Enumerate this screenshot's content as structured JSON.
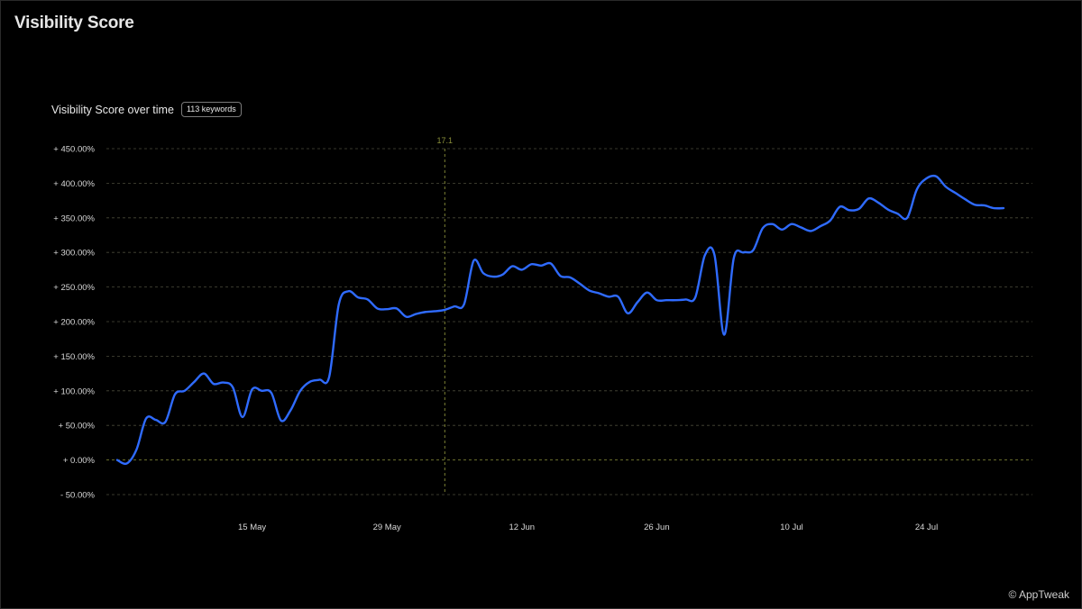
{
  "page": {
    "title": "Visibility Score"
  },
  "chart_header": {
    "title": "Visibility Score over time",
    "badge": "113 keywords"
  },
  "footer": {
    "brand": "© AppTweak"
  },
  "colors": {
    "background": "#000000",
    "line": "#2f6bff",
    "grid": "#4a4a3a",
    "marker": "#8a8f3a",
    "tick_text": "#d8d8d8"
  },
  "chart_data": {
    "type": "line",
    "title": "Visibility Score over time",
    "xlabel": "",
    "ylabel": "",
    "x_range": [
      "2024-05-01",
      "2024-08-01"
    ],
    "ylim": [
      -50,
      450
    ],
    "yticks": [
      {
        "value": 450,
        "label": "+ 450.00%"
      },
      {
        "value": 400,
        "label": "+ 400.00%"
      },
      {
        "value": 350,
        "label": "+ 350.00%"
      },
      {
        "value": 300,
        "label": "+ 300.00%"
      },
      {
        "value": 250,
        "label": "+ 250.00%"
      },
      {
        "value": 200,
        "label": "+ 200.00%"
      },
      {
        "value": 150,
        "label": "+ 150.00%"
      },
      {
        "value": 100,
        "label": "+ 100.00%"
      },
      {
        "value": 50,
        "label": "+ 50.00%"
      },
      {
        "value": 0,
        "label": "+ 0.00%"
      },
      {
        "value": -50,
        "label": "- 50.00%"
      }
    ],
    "xticks": [
      {
        "date": "2024-05-15",
        "label": "15 May"
      },
      {
        "date": "2024-05-29",
        "label": "29 May"
      },
      {
        "date": "2024-06-12",
        "label": "12 Jun"
      },
      {
        "date": "2024-06-26",
        "label": "26 Jun"
      },
      {
        "date": "2024-07-10",
        "label": "10 Jul"
      },
      {
        "date": "2024-07-24",
        "label": "24 Jul"
      }
    ],
    "grid": true,
    "annotations": [
      {
        "date": "2024-06-04",
        "label": "17.1"
      }
    ],
    "series": [
      {
        "points": [
          [
            "2024-05-01",
            0
          ],
          [
            "2024-05-02",
            -5
          ],
          [
            "2024-05-03",
            15
          ],
          [
            "2024-05-04",
            60
          ],
          [
            "2024-05-05",
            58
          ],
          [
            "2024-05-06",
            55
          ],
          [
            "2024-05-07",
            95
          ],
          [
            "2024-05-08",
            100
          ],
          [
            "2024-05-09",
            113
          ],
          [
            "2024-05-10",
            125
          ],
          [
            "2024-05-11",
            110
          ],
          [
            "2024-05-12",
            112
          ],
          [
            "2024-05-13",
            105
          ],
          [
            "2024-05-14",
            62
          ],
          [
            "2024-05-15",
            102
          ],
          [
            "2024-05-16",
            100
          ],
          [
            "2024-05-17",
            97
          ],
          [
            "2024-05-18",
            57
          ],
          [
            "2024-05-19",
            72
          ],
          [
            "2024-05-20",
            100
          ],
          [
            "2024-05-21",
            113
          ],
          [
            "2024-05-22",
            116
          ],
          [
            "2024-05-23",
            120
          ],
          [
            "2024-05-24",
            225
          ],
          [
            "2024-05-25",
            244
          ],
          [
            "2024-05-26",
            235
          ],
          [
            "2024-05-27",
            232
          ],
          [
            "2024-05-28",
            219
          ],
          [
            "2024-05-29",
            218
          ],
          [
            "2024-05-30",
            219
          ],
          [
            "2024-05-31",
            207
          ],
          [
            "2024-06-01",
            211
          ],
          [
            "2024-06-02",
            214
          ],
          [
            "2024-06-03",
            215
          ],
          [
            "2024-06-04",
            217
          ],
          [
            "2024-06-05",
            222
          ],
          [
            "2024-06-06",
            225
          ],
          [
            "2024-06-07",
            288
          ],
          [
            "2024-06-08",
            270
          ],
          [
            "2024-06-09",
            265
          ],
          [
            "2024-06-10",
            268
          ],
          [
            "2024-06-11",
            280
          ],
          [
            "2024-06-12",
            275
          ],
          [
            "2024-06-13",
            283
          ],
          [
            "2024-06-14",
            281
          ],
          [
            "2024-06-15",
            284
          ],
          [
            "2024-06-16",
            266
          ],
          [
            "2024-06-17",
            264
          ],
          [
            "2024-06-18",
            255
          ],
          [
            "2024-06-19",
            245
          ],
          [
            "2024-06-20",
            241
          ],
          [
            "2024-06-21",
            236
          ],
          [
            "2024-06-22",
            236
          ],
          [
            "2024-06-23",
            212
          ],
          [
            "2024-06-24",
            228
          ],
          [
            "2024-06-25",
            242
          ],
          [
            "2024-06-26",
            231
          ],
          [
            "2024-06-27",
            231
          ],
          [
            "2024-06-28",
            231
          ],
          [
            "2024-06-29",
            232
          ],
          [
            "2024-06-30",
            235
          ],
          [
            "2024-07-01",
            296
          ],
          [
            "2024-07-02",
            296
          ],
          [
            "2024-07-03",
            181
          ],
          [
            "2024-07-04",
            292
          ],
          [
            "2024-07-05",
            300
          ],
          [
            "2024-07-06",
            303
          ],
          [
            "2024-07-07",
            335
          ],
          [
            "2024-07-08",
            341
          ],
          [
            "2024-07-09",
            333
          ],
          [
            "2024-07-10",
            341
          ],
          [
            "2024-07-11",
            336
          ],
          [
            "2024-07-12",
            331
          ],
          [
            "2024-07-13",
            338
          ],
          [
            "2024-07-14",
            346
          ],
          [
            "2024-07-15",
            366
          ],
          [
            "2024-07-16",
            361
          ],
          [
            "2024-07-17",
            363
          ],
          [
            "2024-07-18",
            378
          ],
          [
            "2024-07-19",
            372
          ],
          [
            "2024-07-20",
            362
          ],
          [
            "2024-07-21",
            356
          ],
          [
            "2024-07-22",
            350
          ],
          [
            "2024-07-23",
            391
          ],
          [
            "2024-07-24",
            407
          ],
          [
            "2024-07-25",
            410
          ],
          [
            "2024-07-26",
            395
          ],
          [
            "2024-07-27",
            386
          ],
          [
            "2024-07-28",
            377
          ],
          [
            "2024-07-29",
            369
          ],
          [
            "2024-07-30",
            368
          ],
          [
            "2024-07-31",
            364
          ],
          [
            "2024-08-01",
            364
          ]
        ]
      }
    ]
  }
}
